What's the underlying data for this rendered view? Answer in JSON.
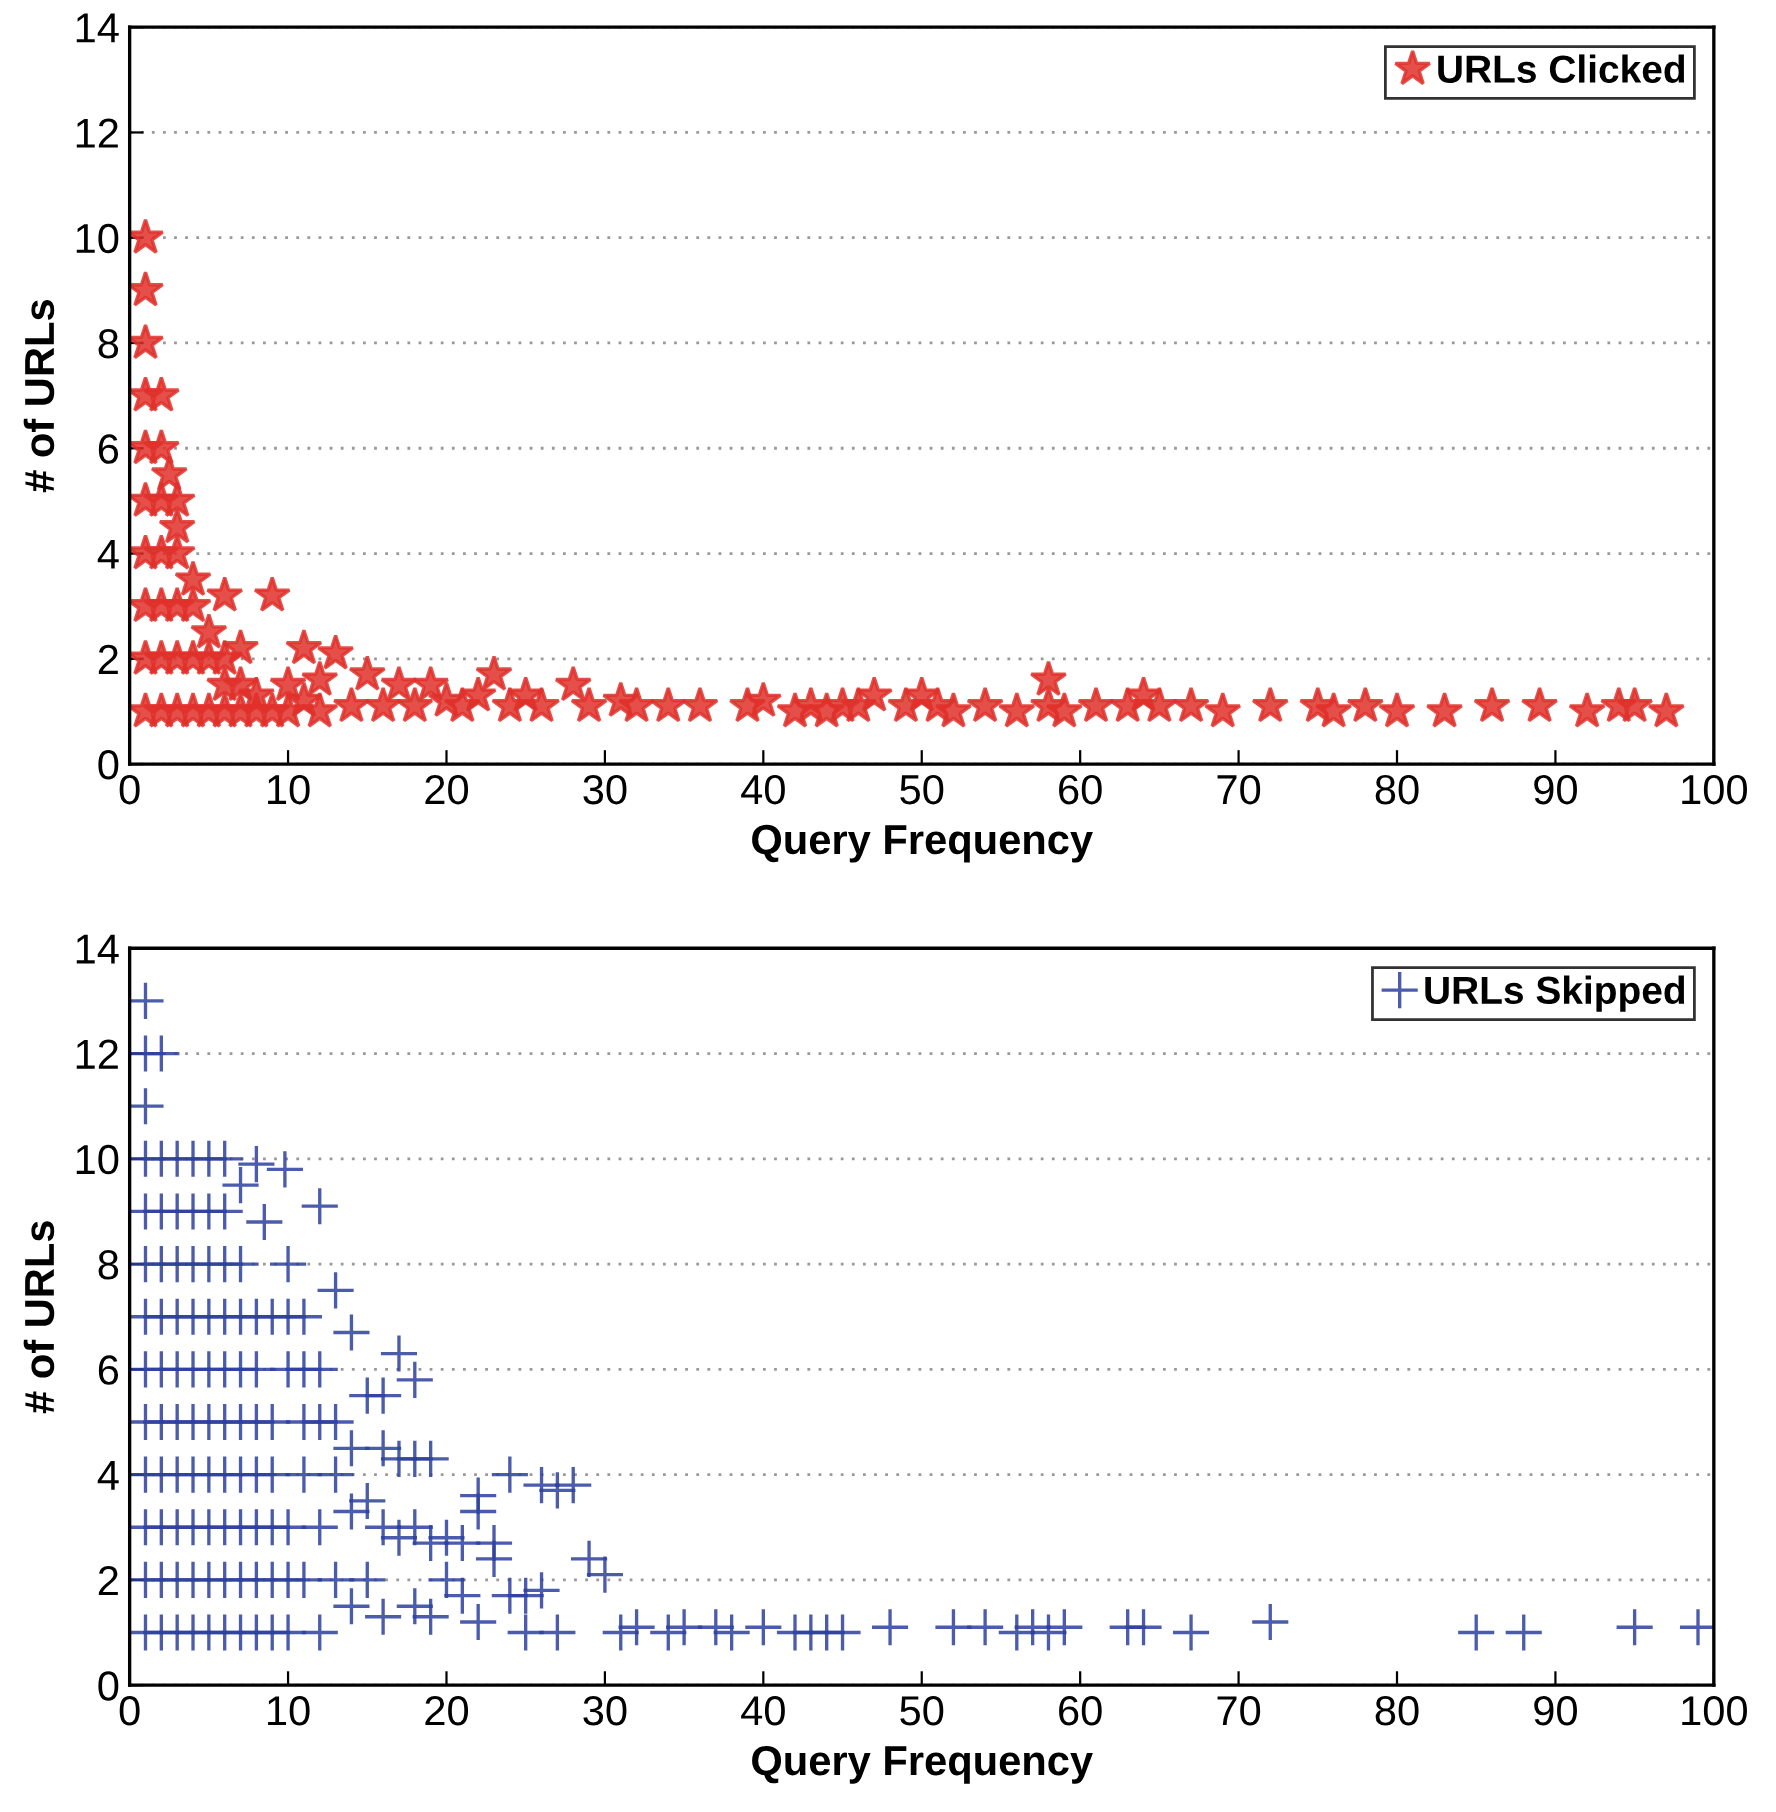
{
  "chart_data": [
    {
      "type": "scatter",
      "xlabel": "Query Frequency",
      "ylabel": "# of URLs",
      "xlim": [
        0,
        100
      ],
      "ylim": [
        0,
        14
      ],
      "xticks": [
        0,
        10,
        20,
        30,
        40,
        50,
        60,
        70,
        80,
        90,
        100
      ],
      "yticks": [
        0,
        2,
        4,
        6,
        8,
        10,
        12,
        14
      ],
      "grid": "y",
      "legend": "top right",
      "marker": "star",
      "series": [
        {
          "name": "URLs Clicked",
          "color": "#e0302a",
          "x": [
            1,
            1,
            1,
            1,
            1,
            1,
            1,
            1,
            1,
            1,
            2,
            2,
            2,
            2,
            2,
            2,
            2,
            2.5,
            3,
            3,
            3,
            3,
            3,
            3,
            4,
            4,
            4,
            4,
            5,
            5,
            5,
            6,
            6,
            6,
            6,
            7,
            7,
            7,
            8,
            8,
            9,
            9,
            10,
            10,
            11,
            11,
            12,
            12,
            13,
            14,
            15,
            16,
            17,
            18,
            19,
            20,
            21,
            22,
            23,
            24,
            25,
            26,
            28,
            29,
            31,
            32,
            34,
            36,
            39,
            40,
            42,
            43,
            44,
            45,
            46,
            47,
            49,
            50,
            51,
            52,
            54,
            56,
            58,
            58,
            59,
            61,
            63,
            64,
            65,
            67,
            69,
            72,
            75,
            76,
            78,
            80,
            83,
            86,
            89,
            92,
            94,
            95,
            97
          ],
          "values": [
            1,
            2,
            3,
            4,
            5,
            6,
            7,
            8,
            9,
            10,
            1,
            2,
            3,
            4,
            5,
            6,
            7,
            5.5,
            1,
            2,
            3,
            4,
            4.5,
            5,
            1,
            2,
            3,
            3.5,
            1,
            2,
            2.5,
            1,
            1.5,
            2,
            3.2,
            1,
            1.5,
            2.2,
            1,
            1.3,
            1,
            3.2,
            1,
            1.5,
            1.2,
            2.2,
            1,
            1.6,
            2.1,
            1.1,
            1.7,
            1.1,
            1.5,
            1.1,
            1.5,
            1.2,
            1.1,
            1.3,
            1.7,
            1.1,
            1.3,
            1.1,
            1.5,
            1.1,
            1.2,
            1.1,
            1.1,
            1.1,
            1.1,
            1.2,
            1,
            1.1,
            1,
            1.1,
            1.1,
            1.3,
            1.1,
            1.3,
            1.1,
            1,
            1.1,
            1,
            1.6,
            1.1,
            1,
            1.1,
            1.1,
            1.3,
            1.1,
            1.1,
            1,
            1.1,
            1.1,
            1,
            1.1,
            1,
            1,
            1.1,
            1.1,
            1,
            1.1,
            1.1,
            1
          ]
        }
      ]
    },
    {
      "type": "scatter",
      "xlabel": "Query Frequency",
      "ylabel": "# of URLs",
      "xlim": [
        0,
        100
      ],
      "ylim": [
        0,
        14
      ],
      "xticks": [
        0,
        10,
        20,
        30,
        40,
        50,
        60,
        70,
        80,
        90,
        100
      ],
      "yticks": [
        0,
        2,
        4,
        6,
        8,
        10,
        12,
        14
      ],
      "grid": "y",
      "legend": "top right",
      "marker": "cross",
      "series": [
        {
          "name": "URLs Skipped",
          "color": "#2b3f9e",
          "x": [
            1,
            1,
            1,
            1,
            1,
            1,
            1,
            1,
            1,
            1,
            1,
            1,
            1,
            2,
            2,
            2,
            2,
            2,
            2,
            2,
            2,
            2,
            2,
            2,
            3,
            3,
            3,
            3,
            3,
            3,
            3,
            3,
            3,
            3,
            4,
            4,
            4,
            4,
            4,
            4,
            4,
            4,
            4,
            4,
            5,
            5,
            5,
            5,
            5,
            5,
            5,
            5,
            5,
            5,
            6,
            6,
            6,
            6,
            6,
            6,
            6,
            6,
            6,
            6,
            7,
            7,
            7,
            7,
            7,
            7,
            7,
            7,
            7,
            8,
            8,
            8,
            8,
            8,
            8,
            8,
            8,
            8.5,
            9,
            9,
            9,
            9,
            9,
            9,
            9.8,
            10,
            10,
            10,
            10,
            10,
            10,
            11,
            11,
            11,
            11,
            11,
            12,
            12,
            12,
            12,
            12,
            13,
            13,
            13,
            13,
            14,
            14,
            14,
            14,
            15,
            15,
            15,
            16,
            16,
            16,
            16,
            17,
            17,
            17,
            18,
            18,
            18,
            18,
            19,
            19,
            19,
            20,
            20,
            21,
            21,
            22,
            22,
            22,
            23,
            23,
            24,
            24,
            25,
            25,
            26,
            26,
            27,
            27,
            28,
            29,
            30,
            31,
            32,
            34,
            35,
            37,
            38,
            40,
            42,
            43,
            44,
            45,
            48,
            52,
            54,
            56,
            57,
            58,
            59,
            63,
            64,
            67,
            72,
            85,
            88,
            95,
            99
          ],
          "values": [
            1,
            2,
            3,
            4,
            5,
            6,
            7,
            8,
            9,
            10,
            11,
            12,
            13,
            1,
            2,
            3,
            4,
            5,
            6,
            7,
            8,
            9,
            10,
            12,
            1,
            2,
            3,
            4,
            5,
            6,
            7,
            8,
            9,
            10,
            1,
            2,
            3,
            4,
            5,
            6,
            7,
            8,
            9,
            10,
            1,
            2,
            3,
            4,
            5,
            6,
            7,
            8,
            9,
            10,
            1,
            2,
            3,
            4,
            5,
            6,
            7,
            8,
            9,
            10,
            1,
            2,
            3,
            4,
            5,
            6,
            7,
            8,
            9.5,
            1,
            2,
            3,
            4,
            5,
            6,
            7,
            9.9,
            8.8,
            1,
            2,
            3,
            4,
            5,
            7,
            9.8,
            1,
            2,
            3,
            6,
            7,
            8,
            2,
            4,
            5,
            6,
            7,
            1,
            3,
            5,
            6,
            9.1,
            2,
            4,
            5,
            7.5,
            1.5,
            3.3,
            4.5,
            6.7,
            2,
            3.5,
            5.5,
            1.3,
            3,
            4.5,
            5.5,
            2.8,
            4.3,
            6.3,
            1.5,
            3,
            4.3,
            5.8,
            1.3,
            2.7,
            4.3,
            2,
            2.8,
            1.7,
            2.7,
            1.2,
            3.3,
            3.6,
            2.4,
            2.7,
            1.7,
            4,
            1,
            1.7,
            1.8,
            3.8,
            1,
            3.7,
            3.8,
            2.4,
            2.1,
            1,
            1.1,
            1,
            1.1,
            1.1,
            1,
            1.1,
            1,
            1,
            1,
            1,
            1.1,
            1.1,
            1.1,
            1,
            1.1,
            1,
            1.1,
            1.1,
            1.1,
            1,
            1.2,
            1,
            1,
            1.1,
            1.1
          ]
        }
      ]
    }
  ]
}
